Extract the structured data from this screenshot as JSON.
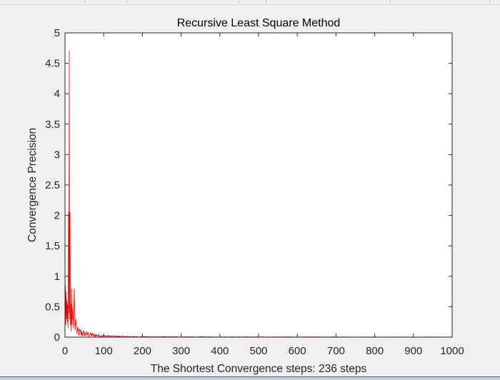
{
  "chart_data": {
    "type": "line",
    "title": "Recursive Least Square Method",
    "xlabel": "The Shortest Convergence steps: 236 steps",
    "ylabel": "Convergence Precision",
    "xlim": [
      0,
      1000
    ],
    "ylim": [
      0,
      5
    ],
    "xticks": [
      "0",
      "100",
      "200",
      "300",
      "400",
      "500",
      "600",
      "700",
      "800",
      "900",
      "1000"
    ],
    "yticks": [
      "0",
      "0.5",
      "1",
      "1.5",
      "2",
      "2.5",
      "3",
      "3.5",
      "4",
      "4.5",
      "5"
    ],
    "grid": false,
    "series": [
      {
        "color": "#ff0000",
        "peaks": [
          {
            "x": 1,
            "y": 0.85
          },
          {
            "x": 2,
            "y": 0.2
          },
          {
            "x": 3,
            "y": 0.75
          },
          {
            "x": 4,
            "y": 0.3
          },
          {
            "x": 5,
            "y": 0.6
          },
          {
            "x": 6,
            "y": 0.25
          },
          {
            "x": 7,
            "y": 0.55
          },
          {
            "x": 8,
            "y": 0.15
          },
          {
            "x": 9,
            "y": 2.05
          },
          {
            "x": 10,
            "y": 0.4
          },
          {
            "x": 11,
            "y": 4.7
          },
          {
            "x": 12,
            "y": 0.3
          },
          {
            "x": 13,
            "y": 2.05
          },
          {
            "x": 14,
            "y": 0.2
          },
          {
            "x": 15,
            "y": 0.55
          },
          {
            "x": 16,
            "y": 0.1
          },
          {
            "x": 17,
            "y": 0.8
          },
          {
            "x": 18,
            "y": 0.2
          },
          {
            "x": 20,
            "y": 0.5
          },
          {
            "x": 22,
            "y": 0.15
          },
          {
            "x": 24,
            "y": 0.8
          },
          {
            "x": 26,
            "y": 0.12
          },
          {
            "x": 28,
            "y": 0.3
          }
        ],
        "tail_start": 30,
        "tail_end": 1000
      }
    ]
  }
}
